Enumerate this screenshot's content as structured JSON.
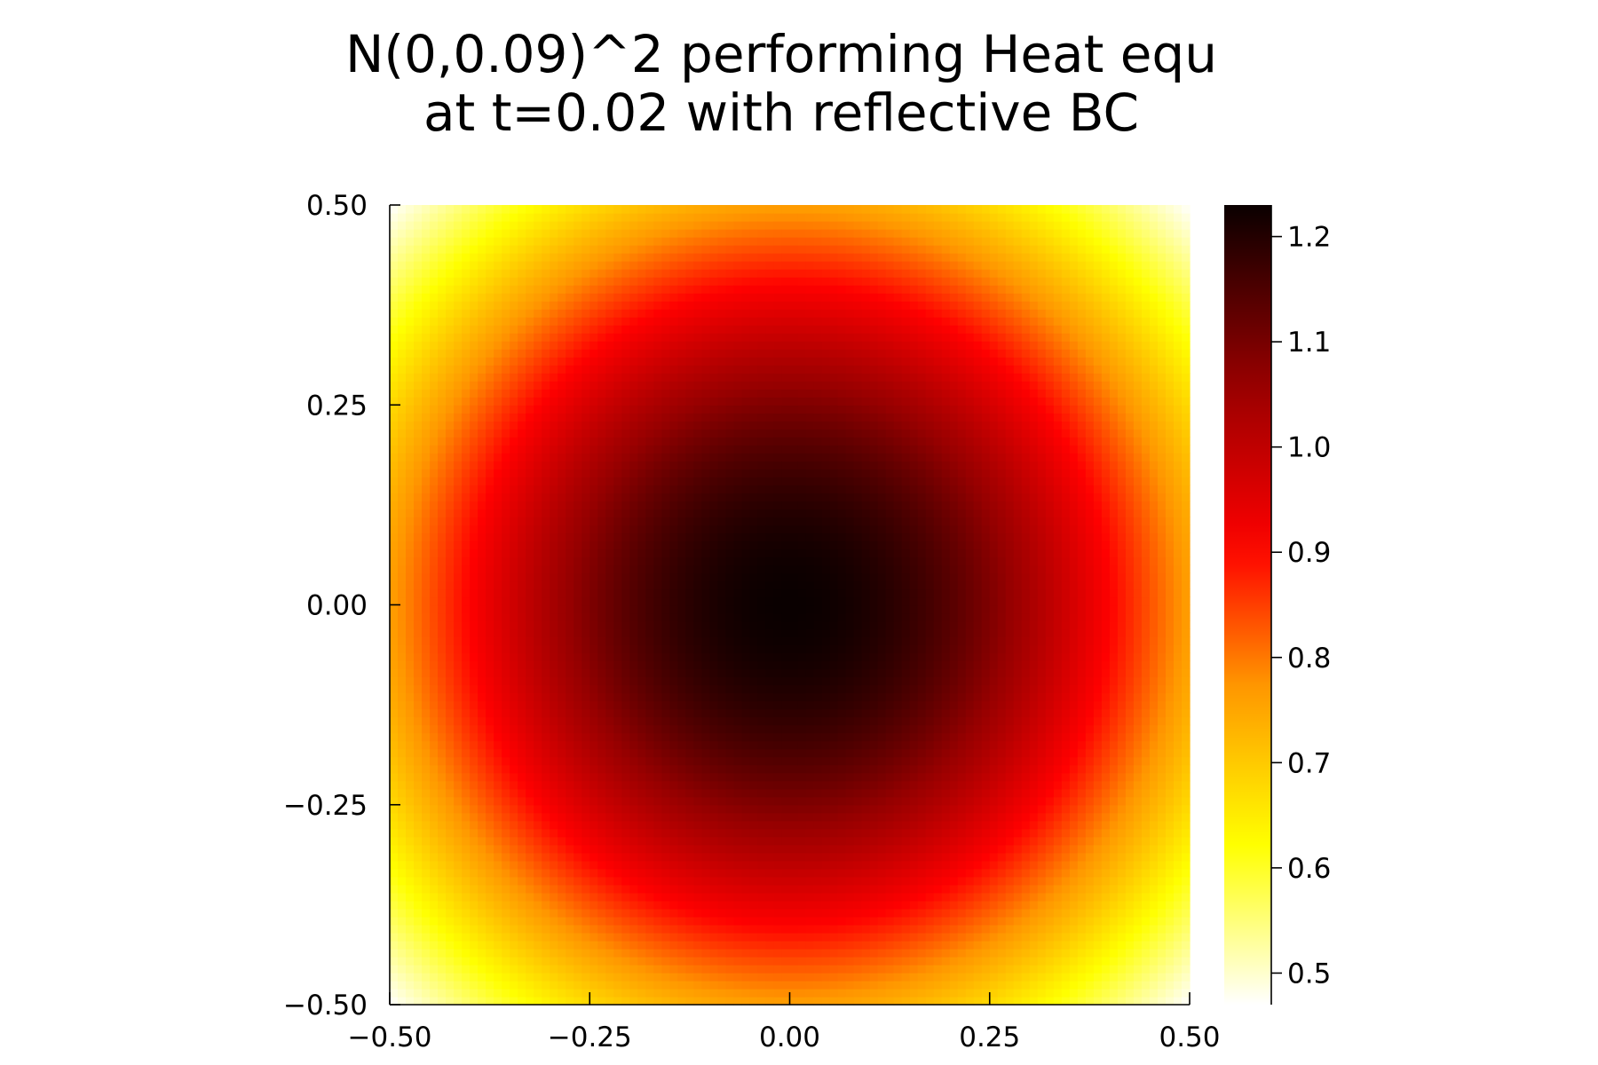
{
  "chart_data": {
    "type": "heatmap",
    "title": [
      "N(0,0.09)^2 performing Heat equ",
      "at t=0.02 with reflective BC"
    ],
    "xlabel": "",
    "ylabel": "",
    "xlim": [
      -0.5,
      0.5
    ],
    "ylim": [
      -0.5,
      0.5
    ],
    "x_ticks": [
      -0.5,
      -0.25,
      0.0,
      0.25,
      0.5
    ],
    "x_tick_labels": [
      "−0.50",
      "−0.25",
      "0.00",
      "0.25",
      "0.50"
    ],
    "y_ticks": [
      -0.5,
      -0.25,
      0.0,
      0.25,
      0.5
    ],
    "y_tick_labels": [
      "−0.50",
      "−0.25",
      "0.00",
      "0.25",
      "0.50"
    ],
    "colorscale": "hot (inverted: white low, black high)",
    "colorbar": {
      "range": [
        0.47,
        1.23
      ],
      "ticks": [
        0.5,
        0.6,
        0.7,
        0.8,
        0.9,
        1.0,
        1.1,
        1.2
      ],
      "tick_labels": [
        "0.5",
        "0.6",
        "0.7",
        "0.8",
        "0.9",
        "1.0",
        "1.1",
        "1.2"
      ]
    },
    "field": {
      "description": "radially symmetric peak at origin",
      "peak_value": 1.23,
      "center": [
        0.0,
        0.0
      ],
      "value_at_center": 1.23,
      "value_at_x_edge_midline": 0.76,
      "value_at_corners": 0.47,
      "grid_resolution": 100
    },
    "grid": false,
    "legend": "none"
  }
}
